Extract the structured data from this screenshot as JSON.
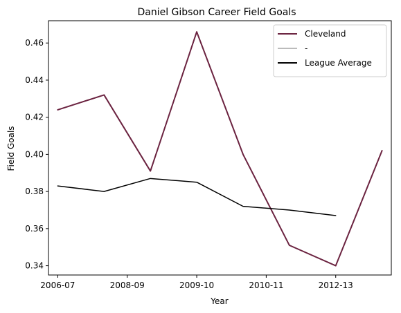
{
  "chart_data": {
    "type": "line",
    "title": "Daniel Gibson Career Field Goals",
    "xlabel": "Year",
    "ylabel": "Field Goals",
    "x_ticks": [
      {
        "label": "2006-07",
        "index": 0
      },
      {
        "label": "2008-09",
        "index": 1.5
      },
      {
        "label": "2009-10",
        "index": 3
      },
      {
        "label": "2010-11",
        "index": 4.5
      },
      {
        "label": "2012-13",
        "index": 6
      }
    ],
    "y_ticks": [
      "0.34",
      "0.36",
      "0.38",
      "0.40",
      "0.42",
      "0.44",
      "0.46"
    ],
    "xlim": [
      -0.2,
      7.2
    ],
    "ylim": [
      0.335,
      0.472
    ],
    "grid": false,
    "legend_position": "top-right",
    "series": [
      {
        "name": "Cleveland",
        "color": "#6b2340",
        "width": 2,
        "x": [
          0,
          1,
          2,
          3,
          4,
          5,
          6,
          7
        ],
        "values": [
          0.424,
          0.432,
          0.391,
          0.466,
          0.4,
          0.351,
          0.34,
          0.402
        ]
      },
      {
        "name": "-",
        "color": "#bbbbbb",
        "width": 2,
        "x": [],
        "values": []
      },
      {
        "name": "League Average",
        "color": "#000000",
        "width": 1.5,
        "x": [
          0,
          1,
          2,
          3,
          4,
          5,
          6
        ],
        "values": [
          0.383,
          0.38,
          0.387,
          0.385,
          0.372,
          0.37,
          0.367
        ]
      }
    ]
  }
}
